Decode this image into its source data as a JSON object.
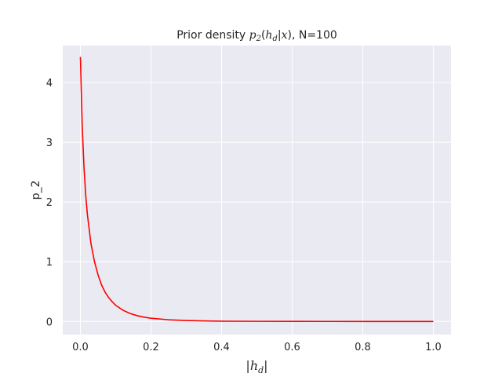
{
  "chart_data": {
    "type": "line",
    "title": {
      "prefix": "Prior density ",
      "math_p": "p",
      "math_sub2": "2",
      "math_open": "(",
      "math_h": "h",
      "math_subd": "d",
      "math_bar": "|",
      "math_x": "x",
      "math_close": ")",
      "suffix": ", N=100"
    },
    "xlabel": {
      "bar_left": "|",
      "h": "h",
      "sub": "d",
      "bar_right": "|"
    },
    "ylabel": "p_2",
    "xlim": [
      -0.05,
      1.05
    ],
    "ylim": [
      -0.22,
      4.62
    ],
    "xticks": [
      0.0,
      0.2,
      0.4,
      0.6,
      0.8,
      1.0
    ],
    "xtick_labels": [
      "0.0",
      "0.2",
      "0.4",
      "0.6",
      "0.8",
      "1.0"
    ],
    "yticks": [
      0,
      1,
      2,
      3,
      4
    ],
    "ytick_labels": [
      "0",
      "1",
      "2",
      "3",
      "4"
    ],
    "grid": true,
    "legend": "none",
    "series": [
      {
        "color": "#ff0000",
        "x": [
          0.0,
          0.005,
          0.01,
          0.015,
          0.02,
          0.03,
          0.04,
          0.05,
          0.06,
          0.07,
          0.08,
          0.09,
          0.1,
          0.12,
          0.14,
          0.16,
          0.18,
          0.2,
          0.25,
          0.3,
          0.35,
          0.4,
          0.5,
          0.6,
          0.7,
          0.8,
          0.9,
          1.0
        ],
        "y": [
          4.43,
          3.3,
          2.6,
          2.12,
          1.78,
          1.3,
          1.0,
          0.78,
          0.61,
          0.49,
          0.4,
          0.33,
          0.27,
          0.19,
          0.135,
          0.098,
          0.072,
          0.054,
          0.028,
          0.016,
          0.009,
          0.005,
          0.002,
          0.0008,
          0.0003,
          0.0001,
          5e-05,
          0.0
        ]
      }
    ]
  }
}
